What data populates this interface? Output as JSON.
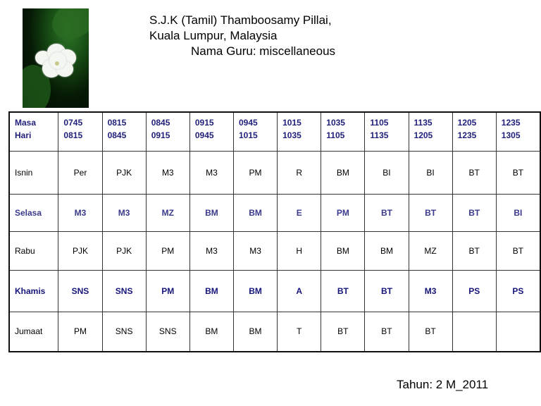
{
  "header": {
    "school": "S.J.K (Tamil) Thamboosamy Pillai,",
    "location": "Kuala Lumpur, Malaysia",
    "teacher": "Nama Guru: miscellaneous"
  },
  "timetable": {
    "corner_top": "Masa",
    "corner_bottom": "Hari",
    "periods": [
      {
        "start": "0745",
        "end": "0815"
      },
      {
        "start": "0815",
        "end": "0845"
      },
      {
        "start": "0845",
        "end": "0915"
      },
      {
        "start": "0915",
        "end": "0945"
      },
      {
        "start": "0945",
        "end": "1015"
      },
      {
        "start": "1015",
        "end": "1035"
      },
      {
        "start": "1035",
        "end": "1105"
      },
      {
        "start": "1105",
        "end": "1135"
      },
      {
        "start": "1135",
        "end": "1205"
      },
      {
        "start": "1205",
        "end": "1235"
      },
      {
        "start": "1235",
        "end": "1305"
      }
    ],
    "rows": [
      {
        "day": "Isnin",
        "cells": [
          "Per",
          "PJK",
          "M3",
          "M3",
          "PM",
          "R",
          "BM",
          "BI",
          "BI",
          "BT",
          "BT"
        ]
      },
      {
        "day": "Selasa",
        "cells": [
          "M3",
          "M3",
          "MZ",
          "BM",
          "BM",
          "E",
          "PM",
          "BT",
          "BT",
          "BT",
          "BI"
        ]
      },
      {
        "day": "Rabu",
        "cells": [
          "PJK",
          "PJK",
          "PM",
          "M3",
          "M3",
          "H",
          "BM",
          "BM",
          "MZ",
          "BT",
          "BT"
        ]
      },
      {
        "day": "Khamis",
        "cells": [
          "SNS",
          "SNS",
          "PM",
          "BM",
          "BM",
          "A",
          "BT",
          "BT",
          "M3",
          "PS",
          "PS"
        ]
      },
      {
        "day": "Jumaat",
        "cells": [
          "PM",
          "SNS",
          "SNS",
          "BM",
          "BM",
          "T",
          "BT",
          "BT",
          "BT",
          "",
          ""
        ]
      }
    ]
  },
  "footer": {
    "year": "Tahun: 2 M_2011"
  },
  "colors": {
    "header_text": "#1f1f7a",
    "selasa": "#3a3a8c",
    "khamis": "#15157a"
  }
}
